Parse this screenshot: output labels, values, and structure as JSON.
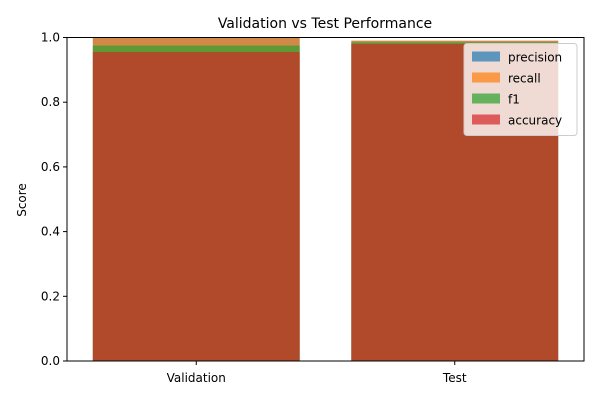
{
  "chart_data": {
    "type": "bar",
    "title": "Validation vs Test Performance",
    "xlabel": "",
    "ylabel": "Score",
    "categories": [
      "Validation",
      "Test"
    ],
    "ylim": [
      0,
      1
    ],
    "yticks": [
      "0.0",
      "0.2",
      "0.4",
      "0.6",
      "0.8",
      "1.0"
    ],
    "overlay": true,
    "bar_alpha": 0.7,
    "grid": false,
    "legend_position": "top-right",
    "series": [
      {
        "name": "precision",
        "color": "#1f77b4",
        "values": [
          1.0,
          0.99
        ]
      },
      {
        "name": "recall",
        "color": "#ff7f0e",
        "values": [
          1.0,
          0.99
        ]
      },
      {
        "name": "f1",
        "color": "#2ca02c",
        "values": [
          0.975,
          0.985
        ]
      },
      {
        "name": "accuracy",
        "color": "#d62728",
        "values": [
          0.955,
          0.98
        ]
      }
    ]
  }
}
